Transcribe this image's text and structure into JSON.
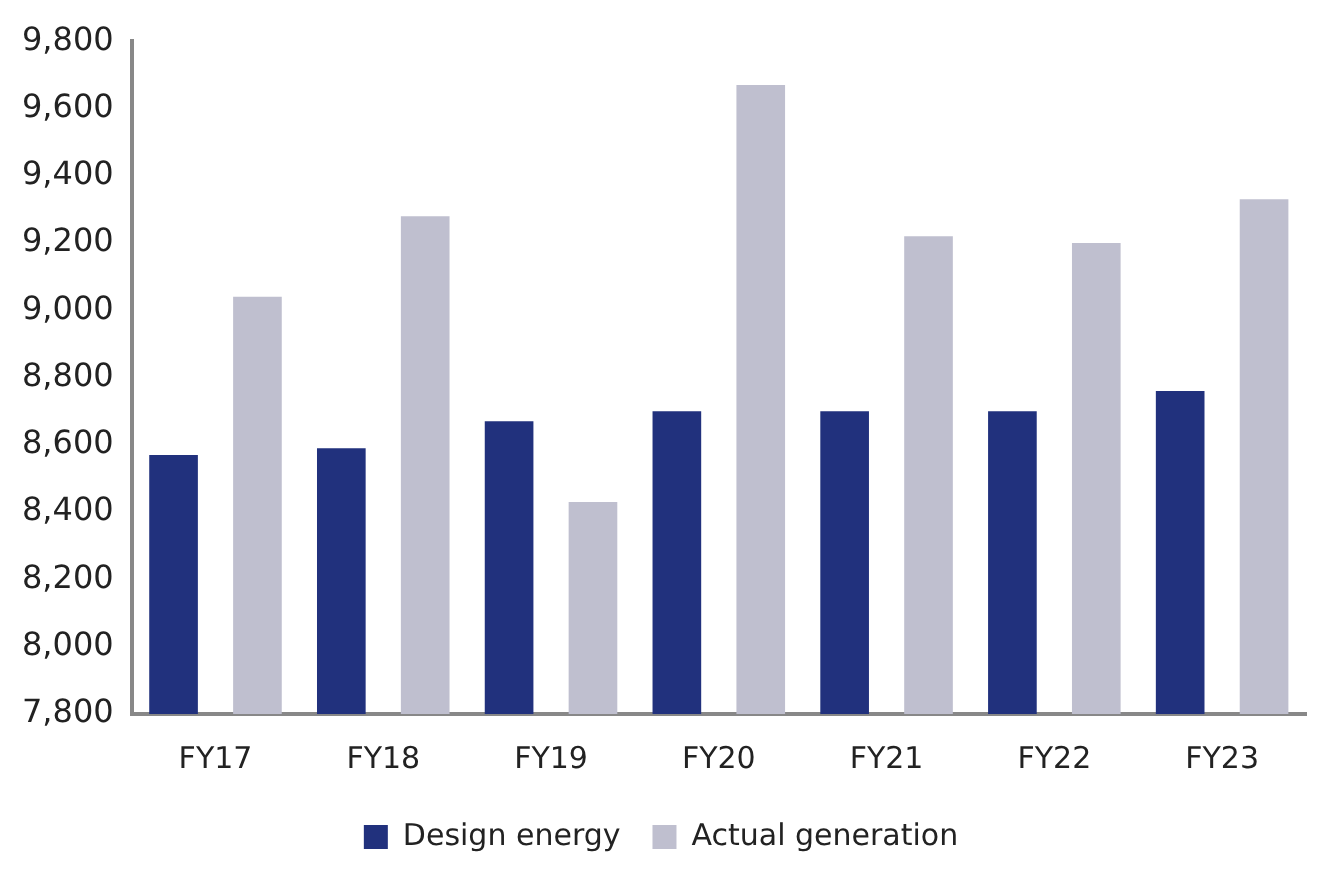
{
  "chart_data": {
    "type": "bar",
    "categories": [
      "FY17",
      "FY18",
      "FY19",
      "FY20",
      "FY21",
      "FY22",
      "FY23"
    ],
    "series": [
      {
        "name": "Design energy",
        "color": "#21317d",
        "values": [
          8570,
          8590,
          8670,
          8700,
          8700,
          8700,
          8760
        ]
      },
      {
        "name": "Actual generation",
        "color": "#bfbfcf",
        "values": [
          9040,
          9280,
          8430,
          9670,
          9220,
          9200,
          9330
        ]
      }
    ],
    "ylim": [
      7800,
      9800
    ],
    "yticks": [
      {
        "value": 7800,
        "label": "7,800"
      },
      {
        "value": 8000,
        "label": "8,000"
      },
      {
        "value": 8200,
        "label": "8,200"
      },
      {
        "value": 8400,
        "label": "8,400"
      },
      {
        "value": 8600,
        "label": "8,600"
      },
      {
        "value": 8800,
        "label": "8,800"
      },
      {
        "value": 9000,
        "label": "9,000"
      },
      {
        "value": 9200,
        "label": "9,200"
      },
      {
        "value": 9400,
        "label": "9,400"
      },
      {
        "value": 9600,
        "label": "9,600"
      },
      {
        "value": 9800,
        "label": "9,800"
      }
    ],
    "grid": false,
    "legend": "bottom"
  }
}
